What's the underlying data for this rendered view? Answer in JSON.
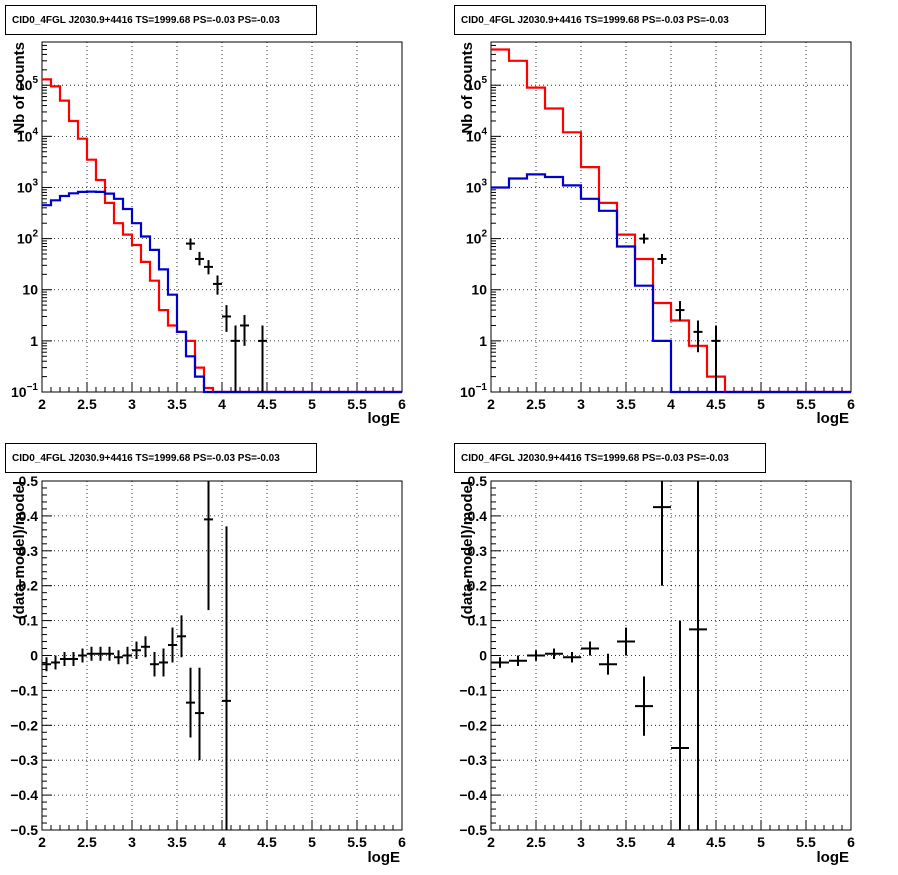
{
  "title": "CID0_4FGL J2030.9+4416 TS=1999.68 PS=-0.03 PS=-0.03",
  "colors": {
    "model": "#ff0000",
    "source": "#0000cc",
    "data": "#000000",
    "grid": "#000000"
  },
  "chart_data": [
    {
      "type": "line",
      "scale": "log",
      "title": "CID0_4FGL J2030.9+4416 TS=1999.68 PS=-0.03 PS=-0.03",
      "xlabel": "logE",
      "ylabel": "Nb of counts",
      "xlim": [
        2,
        6
      ],
      "ylim": [
        0.1,
        700000
      ],
      "xticks": [
        "2",
        "2.5",
        "3",
        "3.5",
        "4",
        "4.5",
        "5",
        "5.5",
        "6"
      ],
      "yticks": [
        {
          "v": 0.1,
          "m": "10",
          "e": "−1"
        },
        {
          "v": 1,
          "m": "1",
          "e": ""
        },
        {
          "v": 10,
          "m": "10",
          "e": ""
        },
        {
          "v": 100,
          "m": "10",
          "e": "2"
        },
        {
          "v": 1000,
          "m": "10",
          "e": "3"
        },
        {
          "v": 10000,
          "m": "10",
          "e": "4"
        },
        {
          "v": 100000,
          "m": "10",
          "e": "5"
        }
      ],
      "grid": true,
      "bin_width": 0.1,
      "bin_edges_start": 2.0,
      "series": [
        {
          "role": "model",
          "color": "#ff0000",
          "values": [
            130000,
            95000,
            50000,
            20000,
            9000,
            3500,
            1400,
            500,
            200,
            120,
            75,
            35,
            15,
            4,
            2,
            1.5,
            1,
            0.3,
            0.12,
            0.1,
            0.1,
            0.1,
            0.1,
            0.1,
            0.1,
            0.1,
            0.1,
            0.1,
            0.1,
            0.1,
            0.1,
            0.1,
            0.1,
            0.1,
            0.1,
            0.1,
            0.1,
            0.1,
            0.1,
            0.1
          ]
        },
        {
          "role": "source",
          "color": "#0000cc",
          "values": [
            450,
            560,
            680,
            770,
            820,
            830,
            820,
            760,
            600,
            380,
            200,
            110,
            60,
            25,
            8,
            1.5,
            0.5,
            0.2,
            0.1,
            0.1,
            0.1,
            0.1,
            0.1,
            0.1,
            0.1,
            0.1,
            0.1,
            0.1,
            0.1,
            0.1,
            0.1,
            0.1,
            0.1,
            0.1,
            0.1,
            0.1,
            0.1,
            0.1,
            0.1,
            0.1
          ]
        }
      ],
      "points": [
        {
          "x": 3.65,
          "y": 80,
          "lo": 60,
          "hi": 100
        },
        {
          "x": 3.75,
          "y": 40,
          "lo": 30,
          "hi": 55
        },
        {
          "x": 3.85,
          "y": 28,
          "lo": 20,
          "hi": 38
        },
        {
          "x": 3.95,
          "y": 13,
          "lo": 8,
          "hi": 19
        },
        {
          "x": 4.05,
          "y": 3,
          "lo": 1.5,
          "hi": 5
        },
        {
          "x": 4.15,
          "y": 1,
          "lo": 0.1,
          "hi": 2
        },
        {
          "x": 4.25,
          "y": 2,
          "lo": 0.8,
          "hi": 3.2
        },
        {
          "x": 4.45,
          "y": 1,
          "lo": 0.1,
          "hi": 2
        }
      ]
    },
    {
      "type": "line",
      "scale": "log",
      "title": "CID0_4FGL J2030.9+4416 TS=1999.68 PS=-0.03 PS=-0.03",
      "xlabel": "logE",
      "ylabel": "Nb of counts",
      "xlim": [
        2,
        6
      ],
      "ylim": [
        0.1,
        700000
      ],
      "xticks": [
        "2",
        "2.5",
        "3",
        "3.5",
        "4",
        "4.5",
        "5",
        "5.5",
        "6"
      ],
      "yticks": [
        {
          "v": 0.1,
          "m": "10",
          "e": "−1"
        },
        {
          "v": 1,
          "m": "1",
          "e": ""
        },
        {
          "v": 10,
          "m": "10",
          "e": ""
        },
        {
          "v": 100,
          "m": "10",
          "e": "2"
        },
        {
          "v": 1000,
          "m": "10",
          "e": "3"
        },
        {
          "v": 10000,
          "m": "10",
          "e": "4"
        },
        {
          "v": 100000,
          "m": "10",
          "e": "5"
        }
      ],
      "grid": true,
      "bin_width": 0.2,
      "bin_edges_start": 2.0,
      "series": [
        {
          "role": "model",
          "color": "#ff0000",
          "values": [
            500000,
            300000,
            90000,
            35000,
            12000,
            2500,
            500,
            120,
            40,
            5.5,
            2.5,
            0.8,
            0.2,
            0.1,
            0.1,
            0.1,
            0.1,
            0.1,
            0.1,
            0.1
          ]
        },
        {
          "role": "source",
          "color": "#0000cc",
          "values": [
            1000,
            1500,
            1800,
            1600,
            1100,
            600,
            350,
            70,
            12,
            1,
            0.1,
            0.1,
            0.1,
            0.1,
            0.1,
            0.1,
            0.1,
            0.1,
            0.1,
            0.1
          ]
        }
      ],
      "points": [
        {
          "x": 3.7,
          "y": 100,
          "lo": 80,
          "hi": 125
        },
        {
          "x": 3.9,
          "y": 40,
          "lo": 32,
          "hi": 50
        },
        {
          "x": 4.1,
          "y": 4,
          "lo": 2.5,
          "hi": 6
        },
        {
          "x": 4.3,
          "y": 1.5,
          "lo": 0.6,
          "hi": 2.5
        },
        {
          "x": 4.5,
          "y": 1,
          "lo": 0.1,
          "hi": 2
        }
      ]
    },
    {
      "type": "scatter",
      "scale": "linear",
      "title": "CID0_4FGL J2030.9+4416 TS=1999.68 PS=-0.03 PS=-0.03",
      "xlabel": "logE",
      "ylabel": "(data-model)/model",
      "xlim": [
        2,
        6
      ],
      "ylim": [
        -0.5,
        0.5
      ],
      "xticks": [
        "2",
        "2.5",
        "3",
        "3.5",
        "4",
        "4.5",
        "5",
        "5.5",
        "6"
      ],
      "yticks": [
        {
          "v": -0.5,
          "m": "−0.5",
          "e": ""
        },
        {
          "v": -0.4,
          "m": "−0.4",
          "e": ""
        },
        {
          "v": -0.3,
          "m": "−0.3",
          "e": ""
        },
        {
          "v": -0.2,
          "m": "−0.2",
          "e": ""
        },
        {
          "v": -0.1,
          "m": "−0.1",
          "e": ""
        },
        {
          "v": 0,
          "m": "0",
          "e": ""
        },
        {
          "v": 0.1,
          "m": "0.1",
          "e": ""
        },
        {
          "v": 0.2,
          "m": "0.2",
          "e": ""
        },
        {
          "v": 0.3,
          "m": "0.3",
          "e": ""
        },
        {
          "v": 0.4,
          "m": "0.4",
          "e": ""
        },
        {
          "v": 0.5,
          "m": "0.5",
          "e": ""
        }
      ],
      "grid": true,
      "xerr": 0.05,
      "points": [
        {
          "x": 2.05,
          "y": -0.025,
          "lo": -0.045,
          "hi": -0.005
        },
        {
          "x": 2.15,
          "y": -0.02,
          "lo": -0.04,
          "hi": 0.0
        },
        {
          "x": 2.25,
          "y": -0.01,
          "lo": -0.03,
          "hi": 0.01
        },
        {
          "x": 2.35,
          "y": -0.01,
          "lo": -0.03,
          "hi": 0.01
        },
        {
          "x": 2.45,
          "y": 0.0,
          "lo": -0.02,
          "hi": 0.02
        },
        {
          "x": 2.55,
          "y": 0.005,
          "lo": -0.015,
          "hi": 0.025
        },
        {
          "x": 2.65,
          "y": 0.005,
          "lo": -0.015,
          "hi": 0.025
        },
        {
          "x": 2.75,
          "y": 0.005,
          "lo": -0.015,
          "hi": 0.025
        },
        {
          "x": 2.85,
          "y": -0.005,
          "lo": -0.025,
          "hi": 0.015
        },
        {
          "x": 2.95,
          "y": 0.0,
          "lo": -0.025,
          "hi": 0.025
        },
        {
          "x": 3.05,
          "y": 0.015,
          "lo": -0.01,
          "hi": 0.04
        },
        {
          "x": 3.15,
          "y": 0.025,
          "lo": -0.005,
          "hi": 0.055
        },
        {
          "x": 3.25,
          "y": -0.025,
          "lo": -0.06,
          "hi": 0.01
        },
        {
          "x": 3.35,
          "y": -0.02,
          "lo": -0.06,
          "hi": 0.02
        },
        {
          "x": 3.45,
          "y": 0.03,
          "lo": -0.02,
          "hi": 0.08
        },
        {
          "x": 3.55,
          "y": 0.055,
          "lo": -0.005,
          "hi": 0.115
        },
        {
          "x": 3.65,
          "y": -0.135,
          "lo": -0.235,
          "hi": -0.035
        },
        {
          "x": 3.75,
          "y": -0.165,
          "lo": -0.3,
          "hi": -0.035
        },
        {
          "x": 3.85,
          "y": 0.39,
          "lo": 0.13,
          "hi": 0.5
        },
        {
          "x": 4.05,
          "y": -0.13,
          "lo": -0.5,
          "hi": 0.37
        }
      ]
    },
    {
      "type": "scatter",
      "scale": "linear",
      "title": "CID0_4FGL J2030.9+4416 TS=1999.68 PS=-0.03 PS=-0.03",
      "xlabel": "logE",
      "ylabel": "(data-model)/model",
      "xlim": [
        2,
        6
      ],
      "ylim": [
        -0.5,
        0.5
      ],
      "xticks": [
        "2",
        "2.5",
        "3",
        "3.5",
        "4",
        "4.5",
        "5",
        "5.5",
        "6"
      ],
      "yticks": [
        {
          "v": -0.5,
          "m": "−0.5",
          "e": ""
        },
        {
          "v": -0.4,
          "m": "−0.4",
          "e": ""
        },
        {
          "v": -0.3,
          "m": "−0.3",
          "e": ""
        },
        {
          "v": -0.2,
          "m": "−0.2",
          "e": ""
        },
        {
          "v": -0.1,
          "m": "−0.1",
          "e": ""
        },
        {
          "v": 0,
          "m": "0",
          "e": ""
        },
        {
          "v": 0.1,
          "m": "0.1",
          "e": ""
        },
        {
          "v": 0.2,
          "m": "0.2",
          "e": ""
        },
        {
          "v": 0.3,
          "m": "0.3",
          "e": ""
        },
        {
          "v": 0.4,
          "m": "0.4",
          "e": ""
        },
        {
          "v": 0.5,
          "m": "0.5",
          "e": ""
        }
      ],
      "grid": true,
      "xerr": 0.1,
      "points": [
        {
          "x": 2.1,
          "y": -0.02,
          "lo": -0.035,
          "hi": -0.005
        },
        {
          "x": 2.3,
          "y": -0.015,
          "lo": -0.03,
          "hi": 0.0
        },
        {
          "x": 2.5,
          "y": 0.0,
          "lo": -0.015,
          "hi": 0.015
        },
        {
          "x": 2.7,
          "y": 0.005,
          "lo": -0.01,
          "hi": 0.02
        },
        {
          "x": 2.9,
          "y": -0.005,
          "lo": -0.02,
          "hi": 0.01
        },
        {
          "x": 3.1,
          "y": 0.02,
          "lo": 0.0,
          "hi": 0.04
        },
        {
          "x": 3.3,
          "y": -0.025,
          "lo": -0.055,
          "hi": 0.005
        },
        {
          "x": 3.5,
          "y": 0.04,
          "lo": 0.0,
          "hi": 0.08
        },
        {
          "x": 3.7,
          "y": -0.145,
          "lo": -0.23,
          "hi": -0.06
        },
        {
          "x": 3.9,
          "y": 0.425,
          "lo": 0.2,
          "hi": 0.5
        },
        {
          "x": 4.1,
          "y": -0.265,
          "lo": -0.5,
          "hi": 0.1
        },
        {
          "x": 4.3,
          "y": 0.075,
          "lo": -0.5,
          "hi": 0.5
        }
      ]
    }
  ]
}
